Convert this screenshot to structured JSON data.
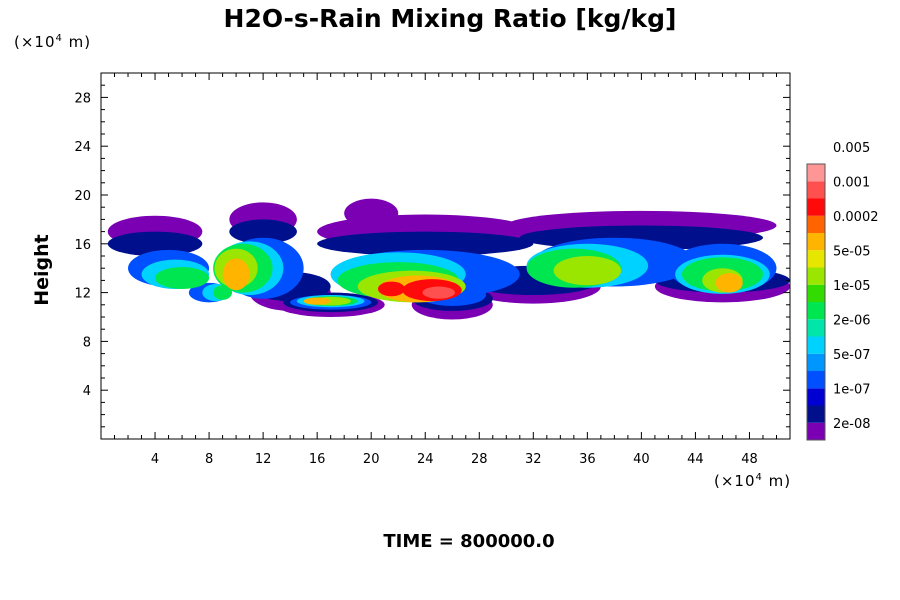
{
  "chart_data": {
    "type": "heatmap",
    "title": "H2O-s-Rain Mixing Ratio [kg/kg]",
    "ylabel": "Height",
    "xlabel": "",
    "x_unit": {
      "prefix": "(×10",
      "exp": "4",
      "suffix": " m)"
    },
    "y_unit": {
      "prefix": "(×10",
      "exp": "4",
      "suffix": " m)"
    },
    "xlim": [
      0,
      51
    ],
    "ylim": [
      0,
      30
    ],
    "xticks": [
      4,
      8,
      12,
      16,
      20,
      24,
      28,
      32,
      36,
      40,
      44,
      48
    ],
    "yticks": [
      4,
      8,
      12,
      16,
      20,
      24,
      28
    ],
    "colorbar": {
      "colors": [
        "#7b00b4",
        "#00108c",
        "#0000d2",
        "#0050ff",
        "#0096ff",
        "#00d2ff",
        "#00e6aa",
        "#00e650",
        "#32dc00",
        "#9be600",
        "#e6e600",
        "#ffb400",
        "#ff6400",
        "#ff0a0a",
        "#ff5050",
        "#ff9696"
      ],
      "labels": [
        "2e-08",
        "1e-07",
        "5e-07",
        "2e-06",
        "1e-05",
        "5e-05",
        "0.0002",
        "0.001",
        "0.005"
      ]
    },
    "field": {
      "layers": [
        {
          "level": 0,
          "blobs": [
            [
              4,
              16,
              17,
              3.5,
              1.3
            ],
            [
              12,
              18,
              18,
              2.5,
              1.4
            ],
            [
              24,
              15,
              17,
              8,
              1.4
            ],
            [
              40,
              18,
              17.5,
              10,
              1.2
            ],
            [
              14,
              15,
              12,
              3,
              1.5
            ],
            [
              32,
              15,
              12.5,
              5,
              1.4
            ],
            [
              46,
              15,
              12.5,
              5,
              1.3
            ],
            [
              17,
              12,
              11,
              4,
              1
            ],
            [
              26,
              12,
              11,
              3,
              1.2
            ],
            [
              20,
              17,
              18.5,
              2,
              1.2
            ]
          ]
        },
        {
          "level": 1,
          "blobs": [
            [
              4,
              15.5,
              16,
              3.5,
              1
            ],
            [
              12,
              17.5,
              17,
              2.5,
              1
            ],
            [
              24,
              14.8,
              16,
              8,
              1
            ],
            [
              40,
              17,
              16.5,
              9,
              1
            ],
            [
              14,
              15,
              12.5,
              3,
              1.2
            ],
            [
              32,
              15,
              13,
              5,
              1.2
            ],
            [
              46,
              15,
              13,
              5,
              1
            ],
            [
              17,
              12,
              11.2,
              3.5,
              0.8
            ],
            [
              26,
              12,
              11.5,
              3,
              1
            ]
          ]
        },
        {
          "level": 3,
          "blobs": [
            [
              5,
              14,
              14,
              3,
              1.5
            ],
            [
              12,
              16,
              14,
              3,
              2.5
            ],
            [
              24,
              14.5,
              13.5,
              7,
              2
            ],
            [
              38,
              16,
              14.5,
              6,
              2
            ],
            [
              46,
              15,
              14,
              4,
              2
            ],
            [
              17,
              12,
              11.2,
              3,
              0.6
            ],
            [
              26,
              12,
              11.8,
              2.5,
              0.9
            ],
            [
              8,
              8,
              12,
              1.5,
              0.8
            ]
          ]
        },
        {
          "level": 5,
          "blobs": [
            [
              5.5,
              13,
              13.5,
              2.5,
              1.2
            ],
            [
              11,
              15,
              14,
              2.5,
              2.2
            ],
            [
              22,
              14,
              13.5,
              5,
              1.8
            ],
            [
              36,
              15,
              14.2,
              4.5,
              1.8
            ],
            [
              46,
              14,
              13.5,
              3.5,
              1.6
            ],
            [
              17,
              11.5,
              11.3,
              2.5,
              0.5
            ],
            [
              8.5,
              8,
              12,
              1,
              0.7
            ]
          ]
        },
        {
          "level": 7,
          "blobs": [
            [
              6,
              12,
              13.2,
              2,
              0.9
            ],
            [
              10.5,
              14,
              14,
              2.2,
              2
            ],
            [
              22,
              13,
              13,
              4.5,
              1.5
            ],
            [
              35,
              14,
              14,
              3.5,
              1.6
            ],
            [
              46,
              13,
              13.5,
              3,
              1.4
            ],
            [
              17,
              11,
              11.3,
              2,
              0.4
            ],
            [
              9,
              7,
              12,
              0.7,
              0.6
            ]
          ]
        },
        {
          "level": 9,
          "blobs": [
            [
              10,
              13,
              14,
              1.6,
              1.6
            ],
            [
              23,
              12,
              12.5,
              4,
              1.3
            ],
            [
              36,
              13,
              13.8,
              2.5,
              1.2
            ],
            [
              46,
              12,
              13,
              1.5,
              1
            ],
            [
              17,
              11,
              11.3,
              1.5,
              0.35
            ]
          ]
        },
        {
          "level": 11,
          "blobs": [
            [
              10,
              12,
              13.5,
              1,
              1.3
            ],
            [
              23.5,
              11,
              12.3,
              3,
              1.1
            ],
            [
              46.5,
              11,
              12.8,
              1,
              0.8
            ],
            [
              16,
              10,
              11.3,
              1,
              0.3
            ]
          ]
        },
        {
          "level": 13,
          "blobs": [
            [
              24.5,
              10,
              12.2,
              2.2,
              0.9
            ],
            [
              21.5,
              9,
              12.3,
              1,
              0.6
            ]
          ]
        },
        {
          "level": 14,
          "blobs": [
            [
              25,
              9,
              12,
              1.2,
              0.5
            ]
          ]
        }
      ]
    }
  },
  "footer": {
    "time": "TIME = 800000.0"
  }
}
